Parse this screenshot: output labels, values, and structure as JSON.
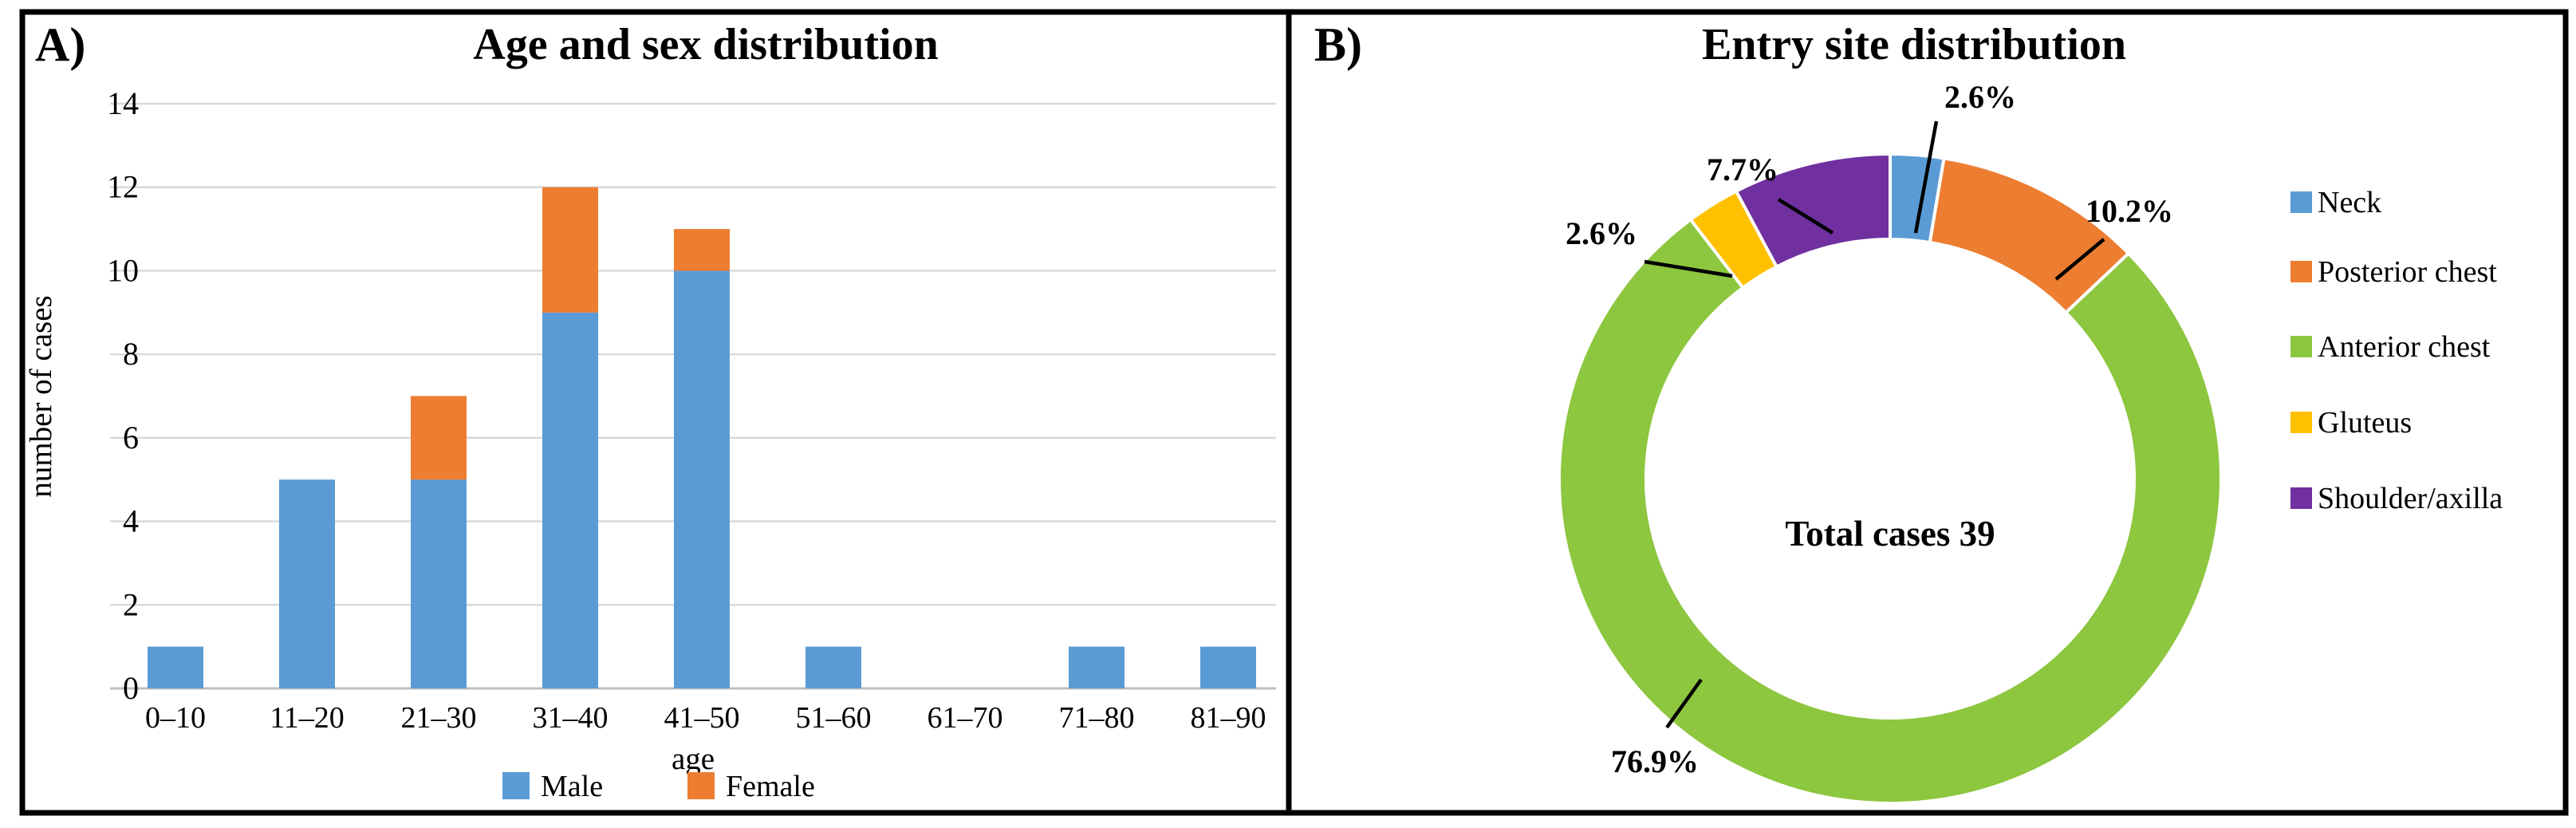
{
  "panels": {
    "a_label": "A)",
    "b_label": "B)"
  },
  "chart_data": [
    {
      "id": "age_sex_distribution",
      "type": "bar",
      "stacked": true,
      "title": "Age and sex distribution",
      "categories": [
        "0–10",
        "11–20",
        "21–30",
        "31–40",
        "41–50",
        "51–60",
        "61–70",
        "71–80",
        "81–90"
      ],
      "series": [
        {
          "name": "Male",
          "color": "#5B9BD5",
          "values": [
            1,
            5,
            5,
            9,
            10,
            1,
            0,
            1,
            1
          ]
        },
        {
          "name": "Female",
          "color": "#ED7D31",
          "values": [
            0,
            0,
            2,
            3,
            1,
            0,
            0,
            0,
            0
          ]
        }
      ],
      "xlabel": "age",
      "ylabel": "number of cases",
      "ylim": [
        0,
        14
      ],
      "ytick_step": 2,
      "grid": true,
      "gridline_color": "#D9D9D9",
      "axisline_color": "#BFBFBF",
      "legend_position": "bottom"
    },
    {
      "id": "entry_site_distribution",
      "type": "donut",
      "title": "Entry site distribution",
      "center_text": "Total cases 39",
      "start_angle_deg": 0,
      "clockwise": true,
      "legend_position": "right",
      "slices": [
        {
          "label": "Neck",
          "value": 2.6,
          "display": "2.6%",
          "color": "#5B9BD5"
        },
        {
          "label": "Posterior chest",
          "value": 10.2,
          "display": "10.2%",
          "color": "#ED7D31"
        },
        {
          "label": "Anterior chest",
          "value": 76.9,
          "display": "76.9%",
          "color": "#8DC63F"
        },
        {
          "label": "Gluteus",
          "value": 2.6,
          "display": "2.6%",
          "color": "#FFC000"
        },
        {
          "label": "Shoulder/axilla",
          "value": 7.7,
          "display": "7.7%",
          "color": "#7030A0"
        }
      ]
    }
  ]
}
